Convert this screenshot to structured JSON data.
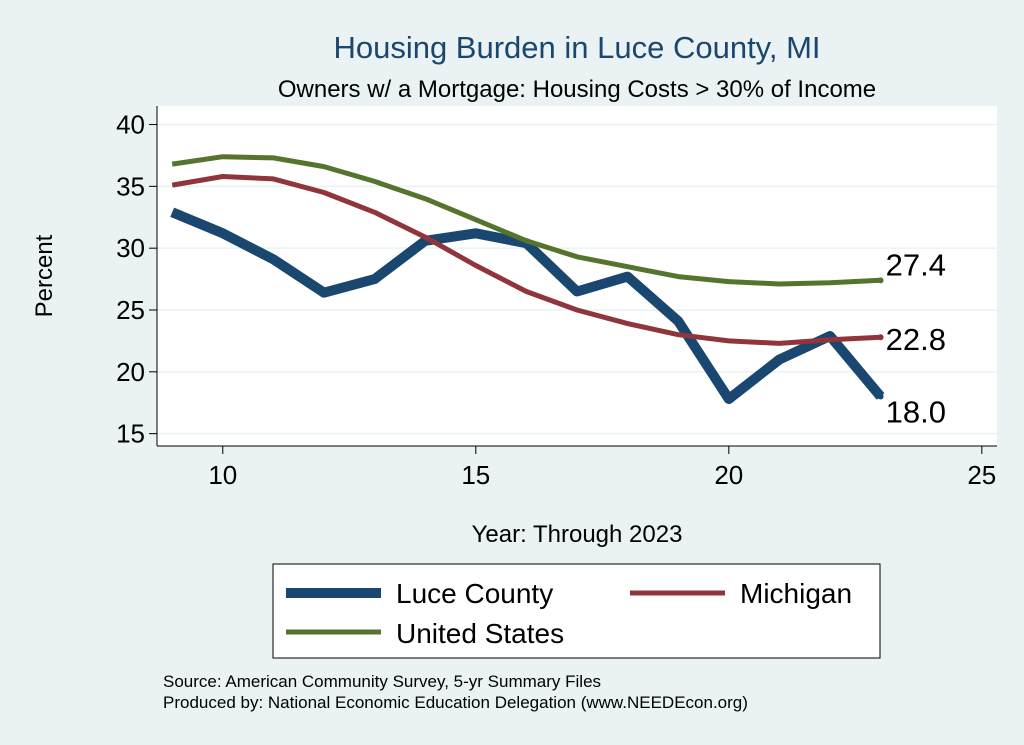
{
  "chart_data": {
    "type": "line",
    "title": "Housing Burden in Luce County, MI",
    "subtitle": "Owners w/ a Mortgage: Housing Costs > 30% of Income",
    "xlabel": "Year: Through 2023",
    "ylabel": "Percent",
    "xlim": [
      8.7,
      25.3
    ],
    "ylim": [
      14,
      41.5
    ],
    "xticks": [
      10,
      15,
      20,
      25
    ],
    "yticks": [
      15,
      20,
      25,
      30,
      35,
      40
    ],
    "grid": "horizontal",
    "legend_position": "bottom",
    "x": [
      9,
      10,
      11,
      12,
      13,
      14,
      15,
      16,
      17,
      18,
      19,
      20,
      21,
      22,
      23
    ],
    "series": [
      {
        "name": "Luce County",
        "color": "#1a476f",
        "values": [
          32.9,
          31.2,
          29.1,
          26.4,
          27.5,
          30.6,
          31.2,
          30.4,
          26.5,
          27.7,
          24.1,
          17.8,
          21.0,
          22.9,
          18.0
        ],
        "end_label": "18.0"
      },
      {
        "name": "Michigan",
        "color": "#90353b",
        "values": [
          35.1,
          35.8,
          35.6,
          34.5,
          32.9,
          30.9,
          28.6,
          26.5,
          25.0,
          23.9,
          23.0,
          22.5,
          22.3,
          22.6,
          22.8
        ],
        "end_label": "22.8"
      },
      {
        "name": "United States",
        "color": "#55752f",
        "values": [
          36.8,
          37.4,
          37.3,
          36.6,
          35.4,
          34.0,
          32.3,
          30.6,
          29.3,
          28.5,
          27.7,
          27.3,
          27.1,
          27.2,
          27.4
        ],
        "end_label": "27.4"
      }
    ]
  },
  "notes": {
    "source": "Source: American Community Survey, 5-yr Summary Files",
    "produced": "Produced by: National Economic Education Delegation (www.NEEDEcon.org)"
  }
}
